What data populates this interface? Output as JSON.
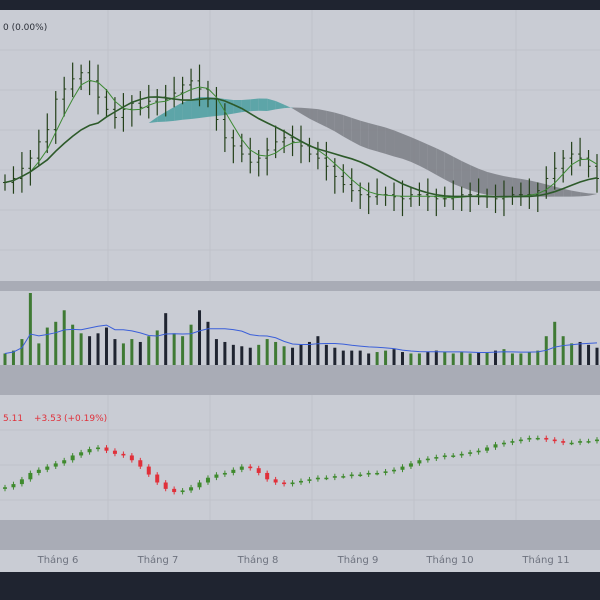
{
  "chart_data": [
    {
      "type": "ohlc",
      "panel": "price",
      "overlays": [
        "moving-average",
        "ichimoku-cloud"
      ],
      "legend_fragment": "0 (0.00%)",
      "closes": [
        164,
        166,
        171,
        176,
        184,
        190,
        205,
        210,
        215,
        218,
        214,
        206,
        200,
        196,
        200,
        203,
        201,
        204,
        206,
        205,
        208,
        212,
        214,
        210,
        205,
        195,
        186,
        182,
        178,
        174,
        176,
        180,
        184,
        186,
        184,
        182,
        178,
        176,
        172,
        167,
        163,
        160,
        158,
        157,
        158,
        158,
        157,
        156,
        158,
        158,
        157,
        156,
        156,
        157,
        158,
        158,
        157,
        157,
        156,
        157,
        158,
        158,
        158,
        160,
        166,
        171,
        176,
        178,
        176,
        172,
        166
      ],
      "ylim": [
        120,
        240
      ],
      "colors": {
        "bar": "#24401a",
        "ma_fast": "#3d8a34",
        "ma_slow": "#2d5a2a",
        "cloud_up": "#4a9ea0",
        "cloud_down": "#7a7d84"
      }
    },
    {
      "type": "bar",
      "panel": "volume",
      "values": [
        8,
        10,
        18,
        50,
        15,
        26,
        30,
        38,
        28,
        22,
        20,
        22,
        26,
        18,
        15,
        18,
        16,
        20,
        24,
        36,
        22,
        20,
        28,
        38,
        30,
        18,
        16,
        14,
        13,
        12,
        14,
        18,
        16,
        13,
        12,
        14,
        16,
        20,
        14,
        12,
        10,
        10,
        10,
        8,
        9,
        10,
        11,
        9,
        8,
        8,
        9,
        10,
        9,
        8,
        9,
        8,
        9,
        9,
        10,
        11,
        8,
        8,
        9,
        10,
        20,
        30,
        20,
        15,
        16,
        14,
        12
      ],
      "colors": {
        "black": "#1f2430",
        "green": "#3f7a34",
        "avg_line": "#3b5fd9"
      }
    },
    {
      "type": "candlestick",
      "panel": "price-2",
      "legend_value": "5.11",
      "legend_change": "+3.53",
      "legend_pct": "(+0.19%)",
      "closes": [
        35,
        37,
        40,
        44,
        46,
        48,
        50,
        52,
        55,
        57,
        59,
        60,
        58,
        56,
        55,
        52,
        48,
        43,
        38,
        34,
        32,
        33,
        35,
        38,
        41,
        43,
        44,
        46,
        48,
        47,
        44,
        40,
        38,
        37,
        38,
        39,
        40,
        41,
        41,
        42,
        42,
        43,
        43,
        44,
        44,
        45,
        46,
        48,
        50,
        52,
        53,
        54,
        55,
        55,
        56,
        57,
        58,
        60,
        62,
        63,
        64,
        65,
        66,
        66,
        65,
        64,
        63,
        63,
        64,
        64,
        65
      ],
      "colors": {
        "up": "#3f8a2e",
        "down": "#e0303a",
        "legend": "#e0303a"
      }
    }
  ],
  "x_axis": {
    "labels": [
      "Tháng 6",
      "Tháng 7",
      "Tháng 8",
      "Tháng 9",
      "Tháng 10",
      "Tháng 11"
    ]
  }
}
